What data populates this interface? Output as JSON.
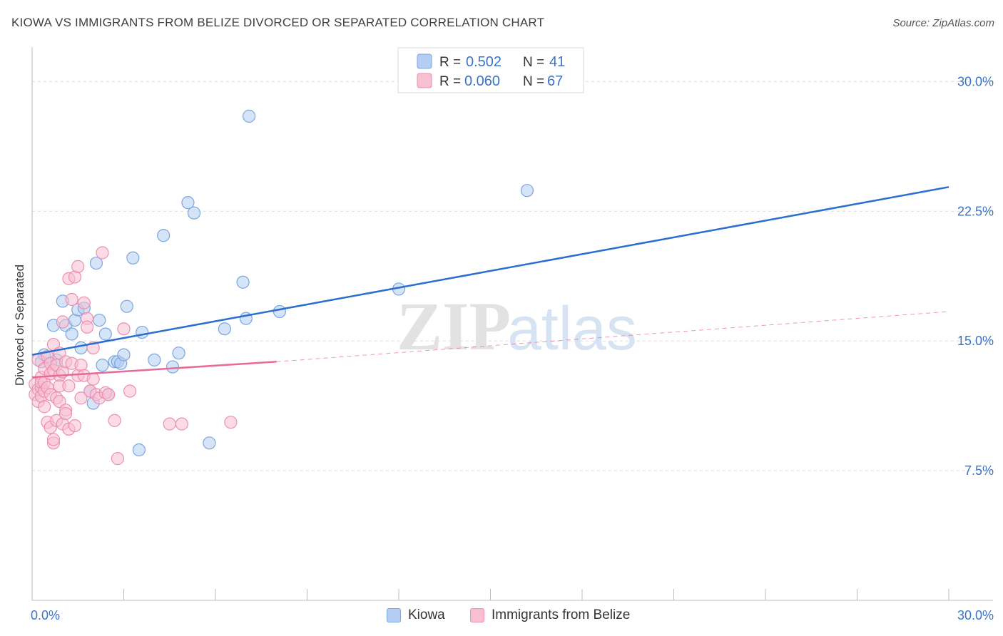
{
  "header": {
    "title": "KIOWA VS IMMIGRANTS FROM BELIZE DIVORCED OR SEPARATED CORRELATION CHART",
    "source": "Source: ZipAtlas.com"
  },
  "watermark": {
    "zip": "ZIP",
    "atlas": "atlas"
  },
  "colors": {
    "kiowa_fill": "#b5cdf2",
    "kiowa_stroke": "#7aa6e0",
    "kiowa_line": "#2a6fcf",
    "belize_fill": "#f7bfd2",
    "belize_stroke": "#ec8fb0",
    "belize_line": "#e8699a",
    "value_text": "#3a74c9",
    "grid": "#dcdcdc"
  },
  "legend_top": {
    "rows": [
      {
        "r_label": "R =",
        "r_value": "0.502",
        "n_label": "N =",
        "n_value": "41"
      },
      {
        "r_label": "R =",
        "r_value": "0.060",
        "n_label": "N =",
        "n_value": "67"
      }
    ]
  },
  "legend_bottom": {
    "items": [
      "Kiowa",
      "Immigrants from Belize"
    ]
  },
  "chart_data": {
    "type": "scatter",
    "title": "KIOWA VS IMMIGRANTS FROM BELIZE DIVORCED OR SEPARATED CORRELATION CHART",
    "xlabel": "",
    "ylabel": "Divorced or Separated",
    "xlim": [
      0,
      30
    ],
    "ylim": [
      0,
      31.5
    ],
    "x_tick_labels": [
      "0.0%",
      "30.0%"
    ],
    "y_ticks": [
      7.5,
      15.0,
      22.5,
      30.0
    ],
    "y_tick_labels": [
      "7.5%",
      "15.0%",
      "22.5%",
      "30.0%"
    ],
    "grid": true,
    "legend_position": "top-center",
    "series": [
      {
        "name": "Kiowa",
        "R": 0.502,
        "N": 41,
        "trend": {
          "x": [
            0.0,
            30.0
          ],
          "y": [
            14.2,
            23.9
          ],
          "dashed_extension_to": null
        },
        "x": [
          0.3,
          0.4,
          0.6,
          0.7,
          0.8,
          1.0,
          1.1,
          1.3,
          1.4,
          1.5,
          1.6,
          1.7,
          1.9,
          2.0,
          2.1,
          2.2,
          2.3,
          2.4,
          2.5,
          2.7,
          2.8,
          2.9,
          3.0,
          3.1,
          3.3,
          3.5,
          3.6,
          4.0,
          4.3,
          4.6,
          4.8,
          5.1,
          5.3,
          5.8,
          6.3,
          6.9,
          7.0,
          7.1,
          8.1,
          12.0,
          16.2
        ],
        "y": [
          13.8,
          14.2,
          13.7,
          15.9,
          13.9,
          17.3,
          15.9,
          15.4,
          16.2,
          16.8,
          14.6,
          16.9,
          12.1,
          11.4,
          19.5,
          16.2,
          13.6,
          15.4,
          11.9,
          13.8,
          13.8,
          13.7,
          14.2,
          17.0,
          19.8,
          8.7,
          15.5,
          13.9,
          21.1,
          13.5,
          14.3,
          23.0,
          22.4,
          9.1,
          15.7,
          18.4,
          16.3,
          28.0,
          16.7,
          18.0,
          23.7
        ]
      },
      {
        "name": "Immigrants from Belize",
        "R": 0.06,
        "N": 67,
        "trend": {
          "x": [
            0.0,
            8.0
          ],
          "y": [
            12.9,
            13.8
          ],
          "dashed_extension_to": [
            30.0,
            16.7
          ]
        },
        "x": [
          0.1,
          0.1,
          0.2,
          0.2,
          0.2,
          0.3,
          0.3,
          0.3,
          0.3,
          0.4,
          0.4,
          0.4,
          0.4,
          0.5,
          0.5,
          0.5,
          0.6,
          0.6,
          0.6,
          0.6,
          0.7,
          0.7,
          0.7,
          0.7,
          0.8,
          0.8,
          0.8,
          0.9,
          0.9,
          0.9,
          0.9,
          1.0,
          1.0,
          1.0,
          1.1,
          1.1,
          1.1,
          1.2,
          1.2,
          1.2,
          1.3,
          1.3,
          1.4,
          1.4,
          1.5,
          1.5,
          1.6,
          1.6,
          1.7,
          1.7,
          1.8,
          1.8,
          1.9,
          2.0,
          2.0,
          2.1,
          2.2,
          2.3,
          2.4,
          2.5,
          2.7,
          2.8,
          3.0,
          3.2,
          4.5,
          4.9,
          6.5
        ],
        "y": [
          12.5,
          11.9,
          12.2,
          13.9,
          11.5,
          12.9,
          12.3,
          11.8,
          12.6,
          12.1,
          13.4,
          11.2,
          12.6,
          14.1,
          10.3,
          12.3,
          13.7,
          13.1,
          11.9,
          10.0,
          14.8,
          13.3,
          9.1,
          9.3,
          13.6,
          11.7,
          10.4,
          14.3,
          13.0,
          12.4,
          11.5,
          16.1,
          13.2,
          10.2,
          13.8,
          11.0,
          10.8,
          18.6,
          12.4,
          9.9,
          17.4,
          13.7,
          18.7,
          10.1,
          19.3,
          13.0,
          13.6,
          11.7,
          17.2,
          13.0,
          16.3,
          15.8,
          12.1,
          14.6,
          12.8,
          11.9,
          11.7,
          20.1,
          12.0,
          11.9,
          10.4,
          8.2,
          15.7,
          12.1,
          10.2,
          10.2,
          10.3
        ]
      }
    ]
  }
}
